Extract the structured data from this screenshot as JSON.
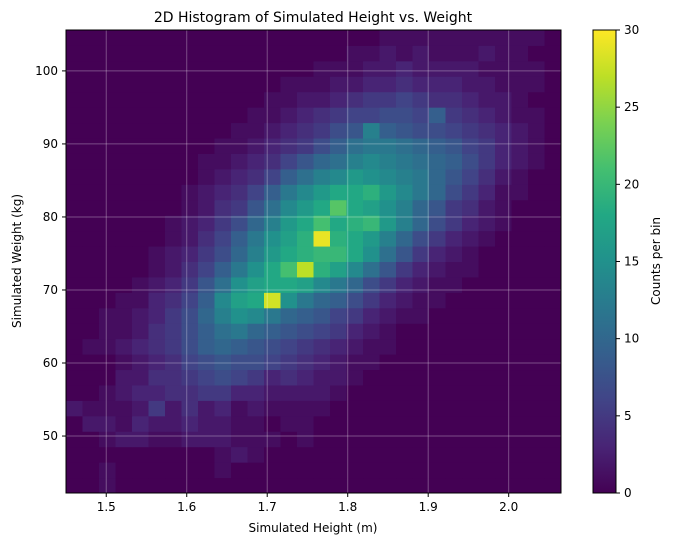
{
  "chart_data": {
    "type": "heatmap",
    "title": "2D Histogram of Simulated Height vs. Weight",
    "xlabel": "Simulated Height (m)",
    "ylabel": "Simulated Weight (kg)",
    "colorbar_label": "Counts per bin",
    "colormap": "viridis",
    "xlim": [
      1.45,
      2.065
    ],
    "ylim": [
      42.2,
      105.6
    ],
    "x_ticks": [
      1.5,
      1.6,
      1.7,
      1.8,
      1.9,
      2.0
    ],
    "x_tick_labels": [
      "1.5",
      "1.6",
      "1.7",
      "1.8",
      "1.9",
      "2.0"
    ],
    "y_ticks": [
      50,
      60,
      70,
      80,
      90,
      100
    ],
    "y_tick_labels": [
      "50",
      "60",
      "70",
      "80",
      "90",
      "100"
    ],
    "colorbar_ticks": [
      0,
      5,
      10,
      15,
      20,
      25,
      30
    ],
    "colorbar_tick_labels": [
      "0",
      "5",
      "10",
      "15",
      "20",
      "25",
      "30"
    ],
    "vmin": 0,
    "vmax": 30,
    "grid": true,
    "bins": 30,
    "bin_centers_x": [
      1.46,
      1.481,
      1.501,
      1.522,
      1.542,
      1.563,
      1.583,
      1.604,
      1.624,
      1.645,
      1.665,
      1.686,
      1.706,
      1.727,
      1.747,
      1.768,
      1.788,
      1.809,
      1.829,
      1.85,
      1.87,
      1.891,
      1.911,
      1.932,
      1.952,
      1.973,
      1.993,
      2.014,
      2.034,
      2.055
    ],
    "bin_centers_y": [
      43.26,
      45.37,
      47.49,
      49.6,
      51.71,
      53.83,
      55.94,
      58.05,
      60.17,
      62.28,
      64.39,
      66.51,
      68.62,
      70.73,
      72.85,
      74.96,
      77.07,
      79.19,
      81.3,
      83.41,
      85.53,
      87.64,
      89.75,
      91.87,
      93.98,
      96.09,
      98.21,
      100.32,
      102.43,
      104.55
    ],
    "counts": [
      [
        0,
        0,
        1,
        0,
        0,
        0,
        0,
        0,
        0,
        0,
        0,
        0,
        0,
        0,
        0,
        0,
        0,
        0,
        0,
        0,
        0,
        0,
        0,
        0,
        0,
        0,
        0,
        0,
        0,
        0
      ],
      [
        0,
        0,
        1,
        0,
        0,
        0,
        0,
        0,
        0,
        1,
        0,
        0,
        0,
        0,
        0,
        0,
        0,
        0,
        0,
        0,
        0,
        0,
        0,
        0,
        0,
        0,
        0,
        0,
        0,
        0
      ],
      [
        0,
        0,
        0,
        0,
        0,
        0,
        0,
        0,
        0,
        1,
        2,
        1,
        0,
        0,
        0,
        0,
        0,
        0,
        0,
        0,
        0,
        0,
        0,
        0,
        0,
        0,
        0,
        0,
        0,
        0
      ],
      [
        0,
        0,
        1,
        2,
        2,
        1,
        1,
        2,
        2,
        2,
        1,
        1,
        1,
        0,
        1,
        0,
        0,
        0,
        0,
        0,
        0,
        0,
        0,
        0,
        0,
        0,
        0,
        0,
        0,
        0
      ],
      [
        0,
        2,
        2,
        1,
        3,
        2,
        2,
        3,
        2,
        2,
        1,
        1,
        0,
        1,
        1,
        0,
        0,
        0,
        0,
        0,
        0,
        0,
        0,
        0,
        0,
        0,
        0,
        0,
        0,
        0
      ],
      [
        2,
        1,
        1,
        1,
        2,
        5,
        2,
        4,
        2,
        3,
        1,
        2,
        1,
        1,
        1,
        1,
        0,
        0,
        0,
        0,
        0,
        0,
        0,
        0,
        0,
        0,
        0,
        0,
        0,
        0
      ],
      [
        0,
        0,
        1,
        2,
        3,
        3,
        4,
        4,
        5,
        5,
        3,
        3,
        2,
        2,
        2,
        2,
        1,
        0,
        0,
        0,
        0,
        0,
        0,
        0,
        0,
        0,
        0,
        0,
        0,
        0
      ],
      [
        0,
        0,
        0,
        2,
        2,
        4,
        4,
        5,
        6,
        7,
        6,
        5,
        3,
        4,
        3,
        2,
        2,
        1,
        0,
        0,
        0,
        0,
        0,
        0,
        0,
        0,
        0,
        0,
        0,
        0
      ],
      [
        0,
        0,
        0,
        1,
        2,
        3,
        4,
        6,
        7,
        8,
        7,
        7,
        6,
        5,
        4,
        3,
        2,
        1,
        1,
        0,
        0,
        0,
        0,
        0,
        0,
        0,
        0,
        0,
        0,
        0
      ],
      [
        0,
        1,
        1,
        2,
        3,
        4,
        5,
        7,
        9,
        10,
        9,
        8,
        7,
        6,
        5,
        4,
        3,
        2,
        1,
        1,
        0,
        0,
        0,
        0,
        0,
        0,
        0,
        0,
        0,
        0
      ],
      [
        0,
        0,
        1,
        1,
        2,
        4,
        5,
        7,
        9,
        11,
        12,
        10,
        9,
        8,
        7,
        6,
        5,
        3,
        2,
        1,
        0,
        0,
        0,
        0,
        0,
        0,
        0,
        0,
        0,
        0
      ],
      [
        0,
        0,
        1,
        1,
        2,
        3,
        5,
        7,
        10,
        13,
        15,
        14,
        12,
        10,
        9,
        8,
        6,
        5,
        3,
        2,
        1,
        1,
        0,
        0,
        0,
        0,
        0,
        0,
        0,
        0
      ],
      [
        0,
        0,
        0,
        1,
        1,
        3,
        4,
        6,
        9,
        14,
        17,
        18,
        28,
        15,
        12,
        10,
        9,
        7,
        5,
        3,
        2,
        1,
        1,
        0,
        0,
        0,
        0,
        0,
        0,
        0
      ],
      [
        0,
        0,
        0,
        0,
        1,
        2,
        3,
        5,
        8,
        11,
        15,
        17,
        18,
        18,
        17,
        14,
        12,
        10,
        7,
        5,
        3,
        2,
        1,
        1,
        0,
        0,
        0,
        0,
        0,
        0
      ],
      [
        0,
        0,
        0,
        0,
        0,
        1,
        2,
        4,
        6,
        9,
        12,
        15,
        18,
        21,
        27,
        19,
        17,
        14,
        11,
        8,
        5,
        3,
        2,
        1,
        1,
        0,
        0,
        0,
        0,
        0
      ],
      [
        0,
        0,
        0,
        0,
        0,
        1,
        2,
        3,
        5,
        7,
        10,
        13,
        16,
        18,
        19,
        20,
        20,
        18,
        15,
        11,
        8,
        5,
        3,
        2,
        1,
        0,
        0,
        0,
        0,
        0
      ],
      [
        0,
        0,
        0,
        0,
        0,
        0,
        1,
        2,
        4,
        6,
        9,
        12,
        15,
        17,
        19,
        29,
        19,
        18,
        16,
        13,
        10,
        7,
        5,
        3,
        2,
        1,
        0,
        0,
        0,
        0
      ],
      [
        0,
        0,
        0,
        0,
        0,
        0,
        1,
        2,
        3,
        5,
        7,
        10,
        13,
        16,
        18,
        21,
        18,
        19,
        20,
        16,
        13,
        10,
        7,
        5,
        3,
        2,
        1,
        0,
        0,
        0
      ],
      [
        0,
        0,
        0,
        0,
        0,
        0,
        0,
        1,
        2,
        4,
        5,
        8,
        11,
        14,
        16,
        18,
        22,
        18,
        17,
        15,
        13,
        10,
        8,
        5,
        4,
        2,
        1,
        0,
        0,
        0
      ],
      [
        0,
        0,
        0,
        0,
        0,
        0,
        0,
        1,
        2,
        3,
        4,
        6,
        9,
        12,
        14,
        16,
        18,
        18,
        19,
        16,
        14,
        12,
        10,
        7,
        5,
        3,
        1,
        1,
        0,
        0
      ],
      [
        0,
        0,
        0,
        0,
        0,
        0,
        0,
        0,
        1,
        2,
        3,
        4,
        6,
        9,
        11,
        13,
        14,
        16,
        15,
        14,
        13,
        12,
        10,
        8,
        6,
        4,
        2,
        1,
        0,
        0
      ],
      [
        0,
        0,
        0,
        0,
        0,
        0,
        0,
        0,
        1,
        1,
        2,
        3,
        4,
        6,
        8,
        10,
        11,
        13,
        14,
        13,
        12,
        11,
        10,
        9,
        7,
        5,
        3,
        2,
        1,
        0
      ],
      [
        0,
        0,
        0,
        0,
        0,
        0,
        0,
        0,
        0,
        1,
        1,
        2,
        3,
        4,
        5,
        7,
        9,
        11,
        12,
        12,
        11,
        10,
        9,
        8,
        6,
        5,
        3,
        2,
        1,
        0
      ],
      [
        0,
        0,
        0,
        0,
        0,
        0,
        0,
        0,
        0,
        0,
        1,
        1,
        2,
        3,
        4,
        5,
        7,
        8,
        13,
        9,
        8,
        7,
        7,
        6,
        5,
        4,
        3,
        2,
        1,
        0
      ],
      [
        0,
        0,
        0,
        0,
        0,
        0,
        0,
        0,
        0,
        0,
        0,
        1,
        1,
        2,
        3,
        4,
        5,
        6,
        6,
        7,
        7,
        6,
        9,
        5,
        4,
        3,
        2,
        1,
        1,
        0
      ],
      [
        0,
        0,
        0,
        0,
        0,
        0,
        0,
        0,
        0,
        0,
        0,
        0,
        1,
        1,
        2,
        2,
        3,
        4,
        5,
        5,
        6,
        5,
        4,
        4,
        3,
        2,
        2,
        1,
        0,
        0
      ],
      [
        0,
        0,
        0,
        0,
        0,
        0,
        0,
        0,
        0,
        0,
        0,
        0,
        0,
        1,
        1,
        1,
        2,
        2,
        3,
        3,
        4,
        3,
        3,
        3,
        2,
        2,
        1,
        1,
        1,
        0
      ],
      [
        0,
        0,
        0,
        0,
        0,
        0,
        0,
        0,
        0,
        0,
        0,
        0,
        0,
        0,
        0,
        1,
        1,
        1,
        2,
        2,
        3,
        2,
        2,
        2,
        2,
        1,
        1,
        1,
        1,
        0
      ],
      [
        0,
        0,
        0,
        0,
        0,
        0,
        0,
        0,
        0,
        0,
        0,
        0,
        0,
        0,
        0,
        0,
        0,
        1,
        1,
        2,
        1,
        2,
        1,
        1,
        1,
        2,
        1,
        1,
        0,
        0
      ],
      [
        0,
        0,
        0,
        0,
        0,
        0,
        0,
        0,
        0,
        0,
        0,
        0,
        0,
        0,
        0,
        0,
        0,
        0,
        0,
        1,
        1,
        1,
        1,
        1,
        1,
        1,
        1,
        1,
        1,
        0
      ]
    ]
  }
}
